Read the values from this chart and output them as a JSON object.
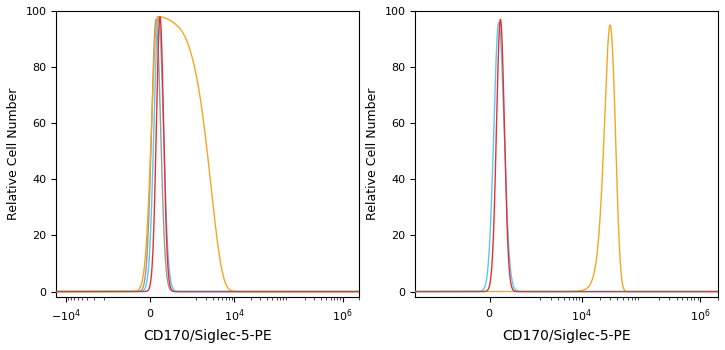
{
  "xlabel": "CD170/Siglec-5-PE",
  "ylabel": "Relative Cell Number",
  "ylim": [
    -2,
    100
  ],
  "yticks": [
    0,
    20,
    40,
    60,
    80,
    100
  ],
  "linthresh": 1000,
  "xlim1": [
    -15000,
    2000000
  ],
  "xlim2": [
    -5000,
    2000000
  ],
  "panel1": {
    "gray_color": "#999999",
    "blue_color": "#5bc8f5",
    "red_color": "#e83030",
    "orange_color": "#f5a623",
    "curves": [
      {
        "color": "#999999",
        "peak_x": 200,
        "peak_y": 97,
        "sigma_l": 150,
        "sigma_r": 150
      },
      {
        "color": "#5bc8f5",
        "peak_x": 280,
        "peak_y": 98,
        "sigma_l": 150,
        "sigma_r": 160
      },
      {
        "color": "#e83030",
        "peak_x": 330,
        "peak_y": 98,
        "sigma_l": 120,
        "sigma_r": 120
      },
      {
        "color": "#f5a623",
        "peak_x": 250,
        "peak_y": 98,
        "sigma_l": 200,
        "sigma_r": 2500
      }
    ]
  },
  "panel2": {
    "curves": [
      {
        "color": "#5bc8f5",
        "peak_x": 280,
        "peak_y": 96,
        "sigma_l": 150,
        "sigma_r": 160
      },
      {
        "color": "#e83030",
        "peak_x": 330,
        "peak_y": 97,
        "sigma_l": 120,
        "sigma_r": 120
      },
      {
        "color": "#f5a623",
        "peak_x": 30000,
        "peak_y": 95,
        "sigma_l": 6000,
        "sigma_r": 7000
      }
    ]
  }
}
